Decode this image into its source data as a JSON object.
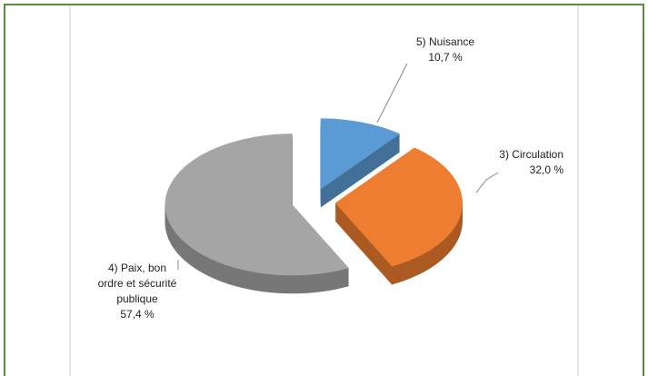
{
  "chart_data": {
    "type": "pie",
    "categories": [
      "5) Nuisance",
      "3) Circulation",
      "4) Paix, bon ordre et sécurité publique"
    ],
    "values": [
      10.7,
      32.0,
      57.4
    ],
    "value_labels": [
      "10,7 %",
      "32,0 %",
      "57,4 %"
    ],
    "colors": [
      "#5b9bd5",
      "#ed7d31",
      "#a5a5a5"
    ]
  }
}
